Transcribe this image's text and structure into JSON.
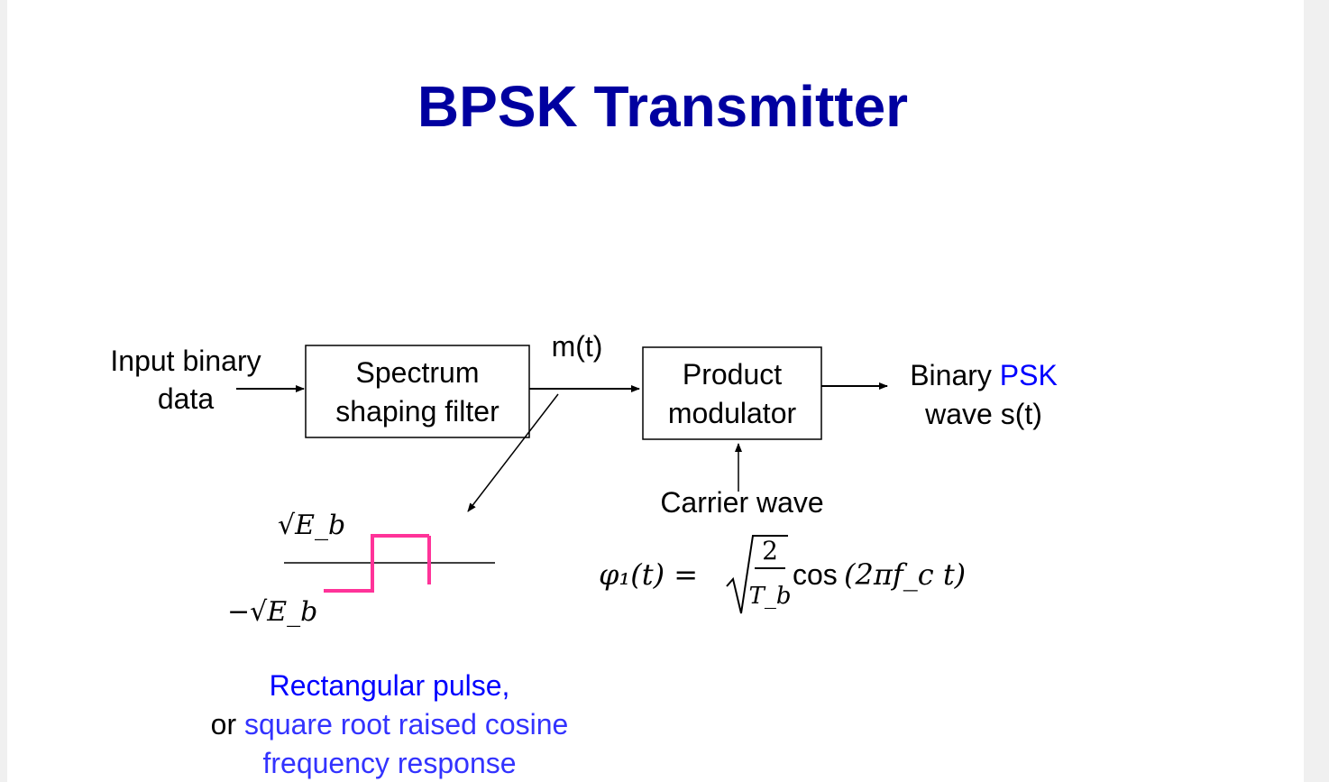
{
  "slide": {
    "title": "BPSK Transmitter"
  },
  "diagram": {
    "input_label": [
      "Input binary",
      "data"
    ],
    "filter_block": [
      "Spectrum",
      "shaping filter"
    ],
    "filter_output_label": "m(t)",
    "modulator_block": [
      "Product",
      "modulator"
    ],
    "output_label": {
      "line1_prefix": "Binary ",
      "line1_highlight": "PSK",
      "line2": "wave s(t)"
    },
    "carrier_label": "Carrier wave",
    "carrier_equation": {
      "lhs": "φ₁(t) =",
      "numerator": "2",
      "denominator": "T_b",
      "function": "cos",
      "argument": "(2πf_c t)"
    },
    "pulse_levels": {
      "positive": "√E_b",
      "negative": "−√E_b"
    },
    "pulse_note": {
      "line1": "Rectangular pulse,",
      "line2_prefix": "or ",
      "line2_highlight": "square root raised cosine",
      "line3": "frequency response"
    }
  },
  "colors": {
    "title": "#0000a0",
    "text": "#000000",
    "highlight_blue": "#0000ff",
    "highlight_blue_light": "#3333ff",
    "pulse": "#ff3399",
    "background": "#ffffff"
  }
}
